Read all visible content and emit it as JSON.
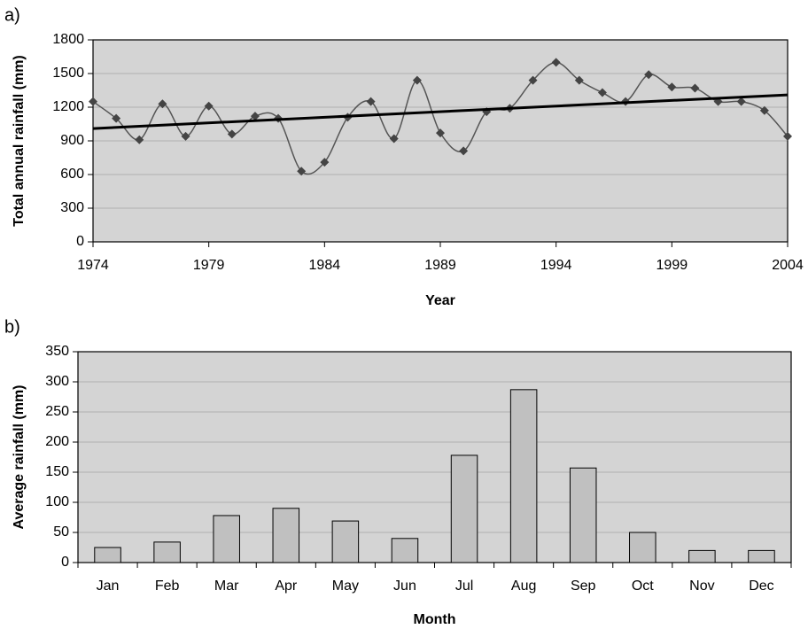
{
  "chart_data": [
    {
      "type": "line",
      "label": "a)",
      "xlabel": "Year",
      "ylabel": "Total annual rainfall (mm)",
      "x": [
        1974,
        1975,
        1976,
        1977,
        1978,
        1979,
        1980,
        1981,
        1982,
        1983,
        1984,
        1985,
        1986,
        1987,
        1988,
        1989,
        1990,
        1991,
        1992,
        1993,
        1994,
        1995,
        1996,
        1997,
        1998,
        1999,
        2000,
        2001,
        2002,
        2003,
        2004
      ],
      "series": [
        {
          "color": "#555555",
          "values": [
            1250,
            1100,
            910,
            1230,
            940,
            1210,
            960,
            1120,
            1100,
            630,
            710,
            1110,
            1250,
            920,
            1440,
            970,
            810,
            1160,
            1190,
            1440,
            1600,
            1440,
            1330,
            1250,
            1490,
            1380,
            1370,
            1250,
            1250,
            1170,
            940
          ]
        }
      ],
      "trendline": {
        "color": "#000000",
        "x": [
          1974,
          2004
        ],
        "values": [
          1010,
          1310
        ]
      },
      "xlim": [
        1974,
        2004
      ],
      "xticks": [
        1974,
        1979,
        1984,
        1989,
        1994,
        1999,
        2004
      ],
      "ylim": [
        0,
        1800
      ],
      "yticks": [
        0,
        300,
        600,
        900,
        1200,
        1500,
        1800
      ],
      "grid": true
    },
    {
      "type": "bar",
      "label": "b)",
      "xlabel": "Month",
      "ylabel": "Average rainfall (mm)",
      "categories": [
        "Jan",
        "Feb",
        "Mar",
        "Apr",
        "May",
        "Jun",
        "Jul",
        "Aug",
        "Sep",
        "Oct",
        "Nov",
        "Dec"
      ],
      "values": [
        25,
        34,
        78,
        90,
        69,
        40,
        178,
        287,
        157,
        50,
        20,
        20
      ],
      "color": "#c0c0c0",
      "ylim": [
        0,
        350
      ],
      "yticks": [
        0,
        50,
        100,
        150,
        200,
        250,
        300,
        350
      ],
      "grid": true
    }
  ]
}
